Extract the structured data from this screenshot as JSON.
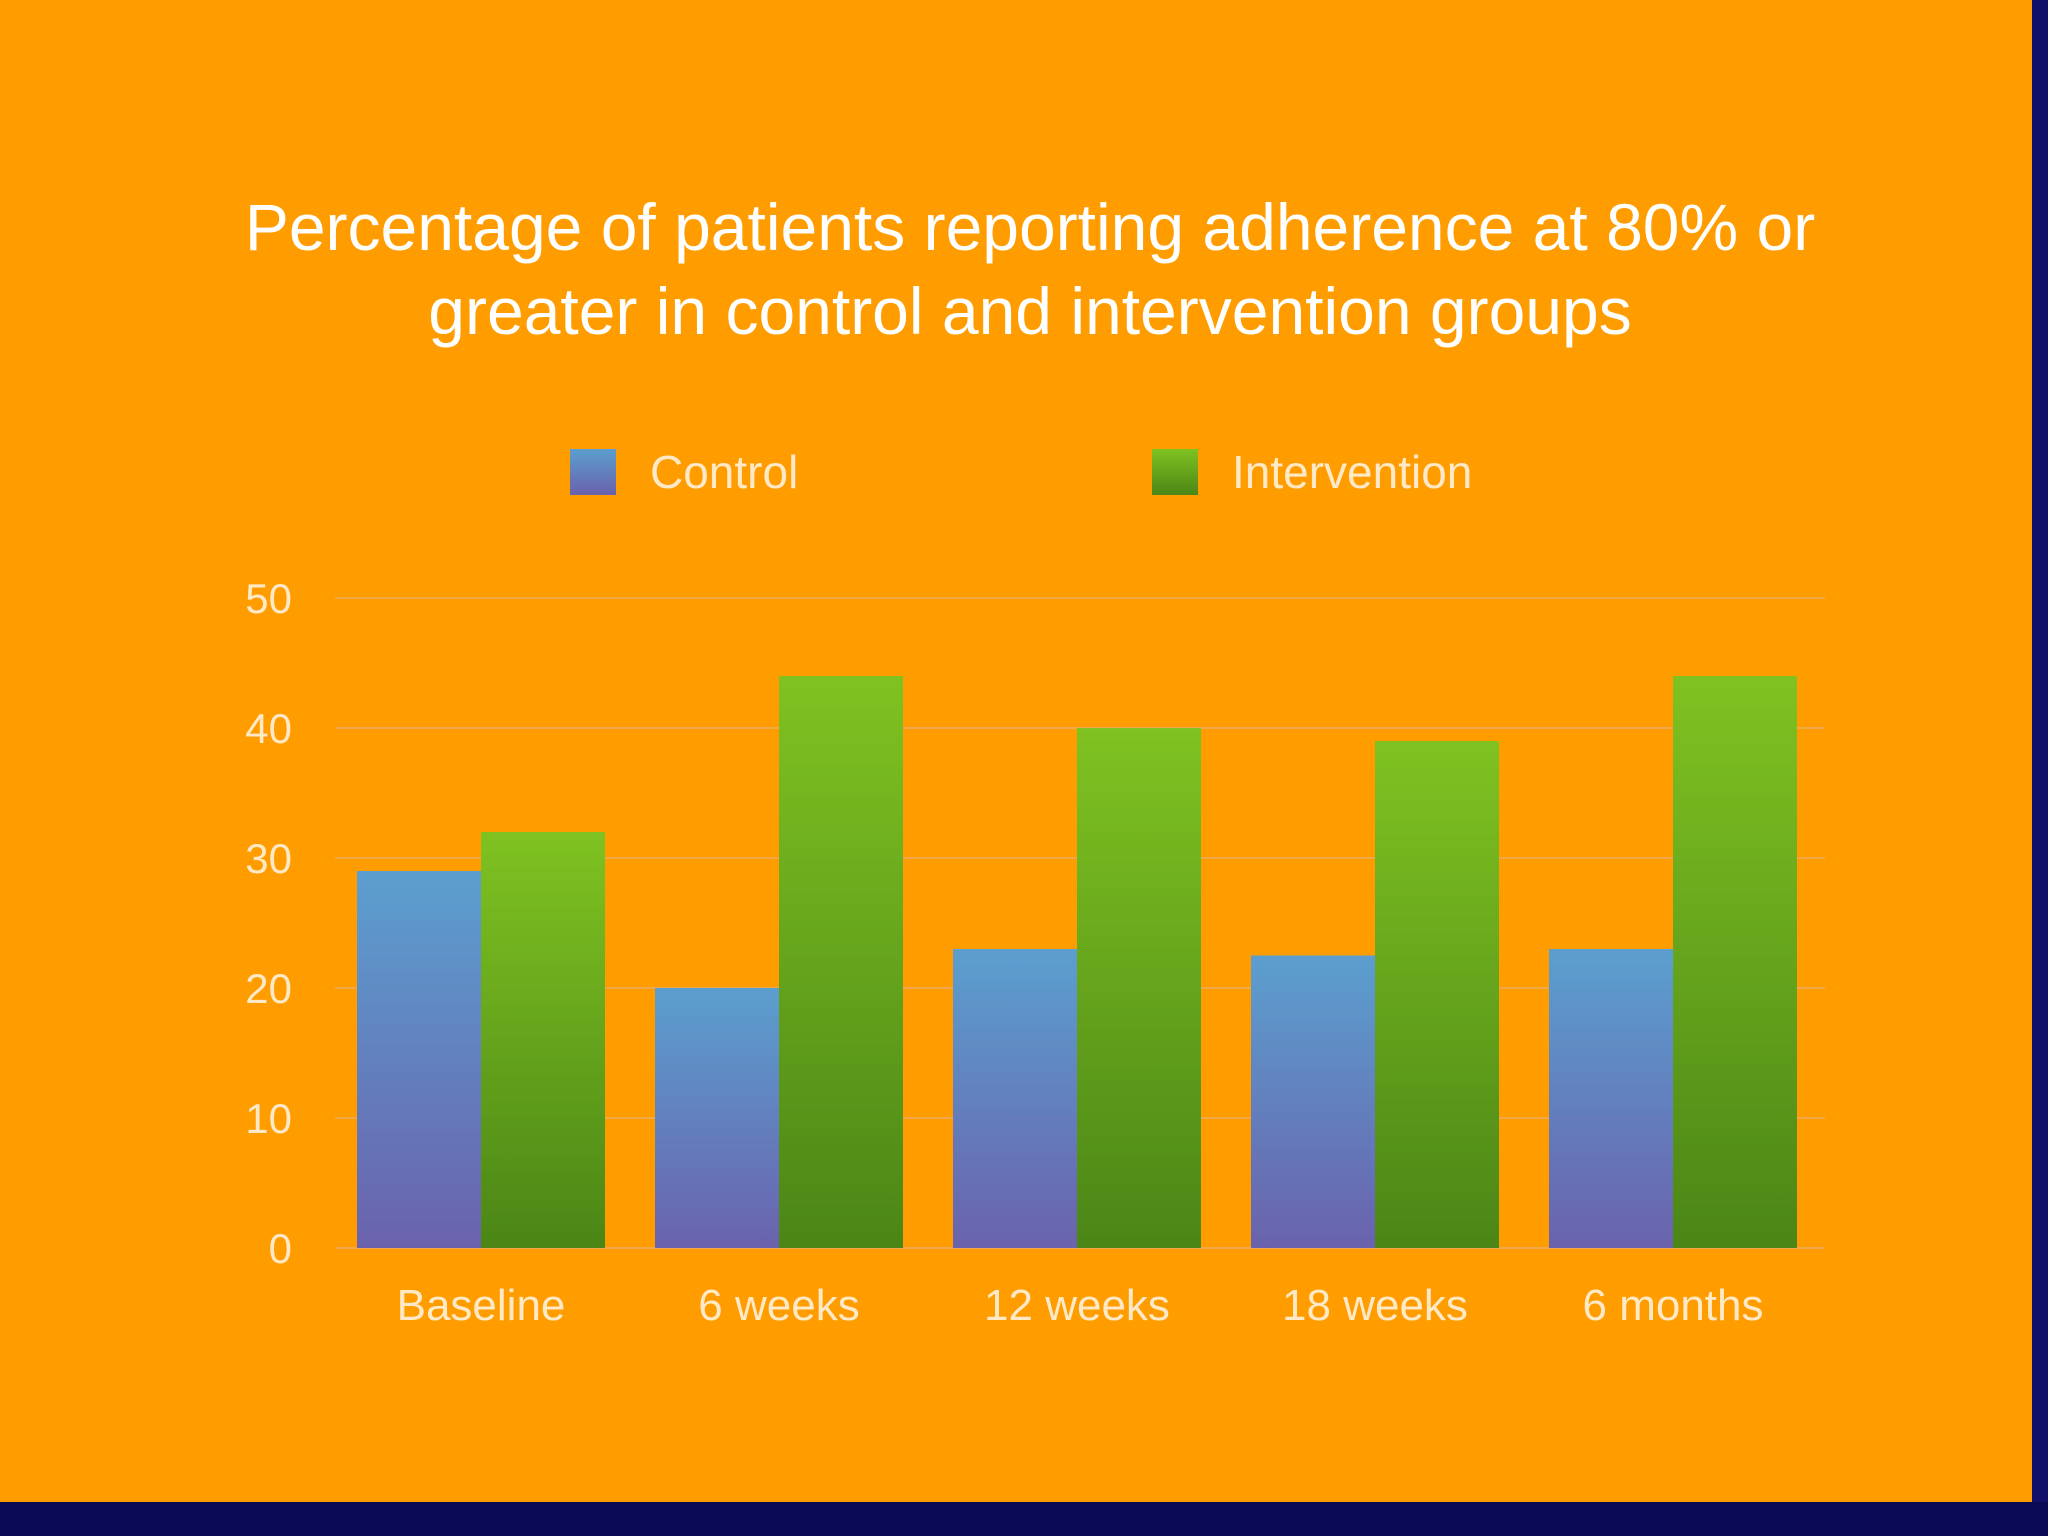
{
  "slide": {
    "background": "#ff9c00",
    "frame_color": "#0a0a55"
  },
  "chart_data": {
    "type": "bar",
    "title_lines": [
      "Percentage of patients reporting adherence at 80% or",
      "greater in control and intervention groups"
    ],
    "categories": [
      "Baseline",
      "6 weeks",
      "12 weeks",
      "18 weeks",
      "6 months"
    ],
    "series": [
      {
        "name": "Control",
        "values": [
          29,
          20,
          23,
          22.5,
          23
        ],
        "color_top": "#5b9fcf",
        "color_bottom": "#6a62ad"
      },
      {
        "name": "Intervention",
        "values": [
          32,
          44,
          40,
          39,
          44
        ],
        "color_top": "#7fc221",
        "color_bottom": "#4b8616"
      }
    ],
    "yticks": [
      "0",
      "10",
      "20",
      "30",
      "40",
      "50"
    ],
    "ylim": [
      0,
      50
    ],
    "grid": true,
    "legend_position": "top-center"
  }
}
